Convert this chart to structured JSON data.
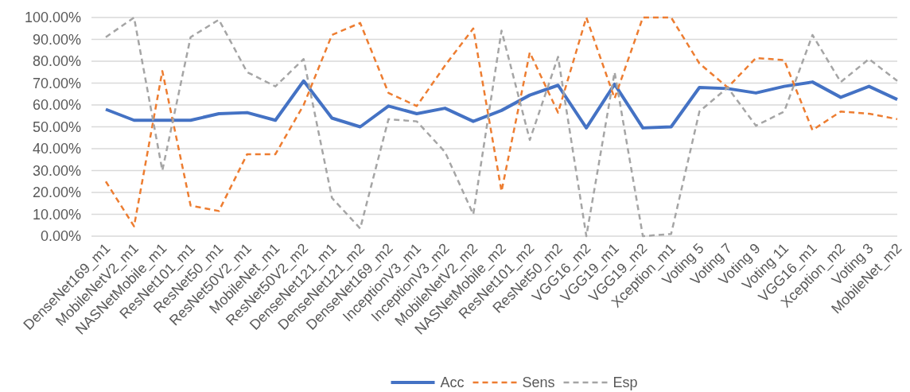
{
  "chart_data": {
    "type": "line",
    "categories": [
      "DenseNet169_m1",
      "MobileNetV2_m1",
      "NASNetMobile_m1",
      "ResNet101_m1",
      "ResNet50_m1",
      "ResNet50V2_m1",
      "MobileNet_m1",
      "ResNet50V2_m2",
      "DenseNet121_m1",
      "DenseNet121_m2",
      "DenseNet169_m2",
      "InceptionV3_m1",
      "InceptionV3_m2",
      "MobileNetV2_m2",
      "NASNetMobile_m2",
      "ResNet101_m2",
      "ResNet50_m2",
      "VGG16_m2",
      "VGG19_m1",
      "VGG19_m2",
      "Xception_m1",
      "Voting 5",
      "Voting 7",
      "Voting 9",
      "Voting 11",
      "VGG16_m1",
      "Xception_m2",
      "Voting 3",
      "MobileNet_m2"
    ],
    "series": [
      {
        "name": "Acc",
        "color": "#4472c4",
        "line_style": "solid",
        "values": [
          58,
          53,
          53,
          53,
          56,
          56.5,
          53,
          71,
          54,
          50,
          59.5,
          56,
          58.5,
          52.5,
          57.5,
          64.5,
          69,
          49.5,
          69.5,
          49.5,
          50,
          68,
          67.5,
          65.5,
          68.5,
          70.5,
          63.5,
          68.5,
          62.5
        ]
      },
      {
        "name": "Sens",
        "color": "#ed7d31",
        "line_style": "dashed",
        "values": [
          25,
          4.5,
          75.5,
          14,
          11.5,
          37.5,
          37.5,
          60,
          92,
          97.5,
          65.5,
          59.5,
          78,
          95,
          20.5,
          84,
          56.5,
          100,
          63,
          100,
          100,
          79,
          68,
          81.5,
          80.5,
          48.5,
          57,
          56,
          53.5
        ]
      },
      {
        "name": "Esp",
        "color": "#a5a5a5",
        "line_style": "dashed",
        "values": [
          91,
          100,
          30,
          91,
          99,
          75,
          68.5,
          81,
          17.5,
          3.5,
          53.5,
          52.5,
          38.5,
          10,
          94,
          44,
          82,
          0,
          75,
          0,
          1,
          57,
          68,
          50.5,
          57,
          92,
          70.5,
          81,
          71
        ]
      }
    ],
    "ylim": [
      0,
      100
    ],
    "yticks": [
      {
        "value": 0,
        "label": "0.00%"
      },
      {
        "value": 10,
        "label": "10.00%"
      },
      {
        "value": 20,
        "label": "20.00%"
      },
      {
        "value": 30,
        "label": "30.00%"
      },
      {
        "value": 40,
        "label": "40.00%"
      },
      {
        "value": 50,
        "label": "50.00%"
      },
      {
        "value": 60,
        "label": "60.00%"
      },
      {
        "value": 70,
        "label": "70.00%"
      },
      {
        "value": 80,
        "label": "80.00%"
      },
      {
        "value": 90,
        "label": "90.00%"
      },
      {
        "value": 100,
        "label": "100.00%"
      }
    ],
    "grid": "y",
    "legend": "bottom",
    "marker": "none"
  }
}
